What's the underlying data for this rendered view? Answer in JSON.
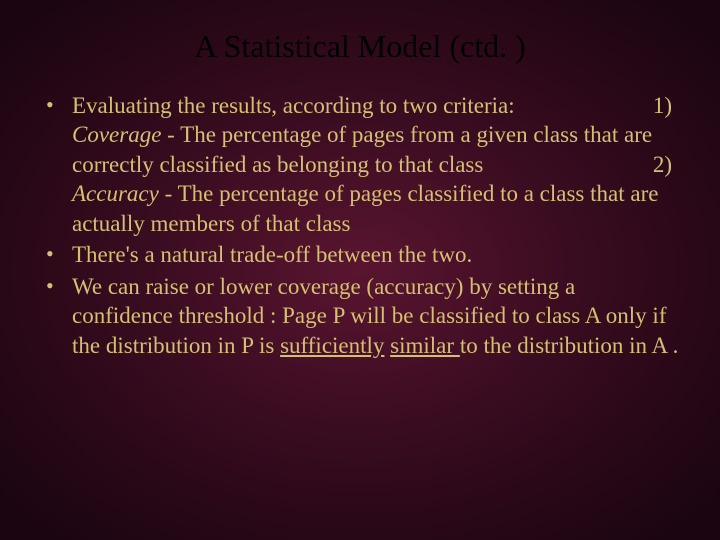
{
  "slide": {
    "title": "A Statistical Model (ctd. )",
    "bullet1_intro": "Evaluating the results, according to two criteria:",
    "num1": "1)",
    "coverage_label": "Coverage",
    "coverage_sep": "  -  ",
    "coverage_text": "The percentage of  pages from a given class that are correctly classified as belonging to that class",
    "num2": "2)",
    "accuracy_label": "Accuracy",
    "accuracy_sep": " -  ",
    "accuracy_text": "The percentage of pages  classified to a class that are actually members of that class",
    "bullet2": " There's a natural trade-off between the two.",
    "bullet3_a": "We can raise or lower  coverage  (accuracy) by setting a confidence threshold : Page P  will be classified to class  A only if the distribution in  P is ",
    "bullet3_underline1": "sufficiently",
    "bullet3_space": " ",
    "bullet3_underline2": "similar ",
    "bullet3_b": " to the distribution in A .",
    "colors": {
      "background_center": "#5a1530",
      "background_outer": "#1a0510",
      "title_color": "#000000",
      "text_color": "#d4c070"
    },
    "typography": {
      "title_fontsize": 32,
      "body_fontsize": 23,
      "font_family": "Times New Roman"
    }
  }
}
